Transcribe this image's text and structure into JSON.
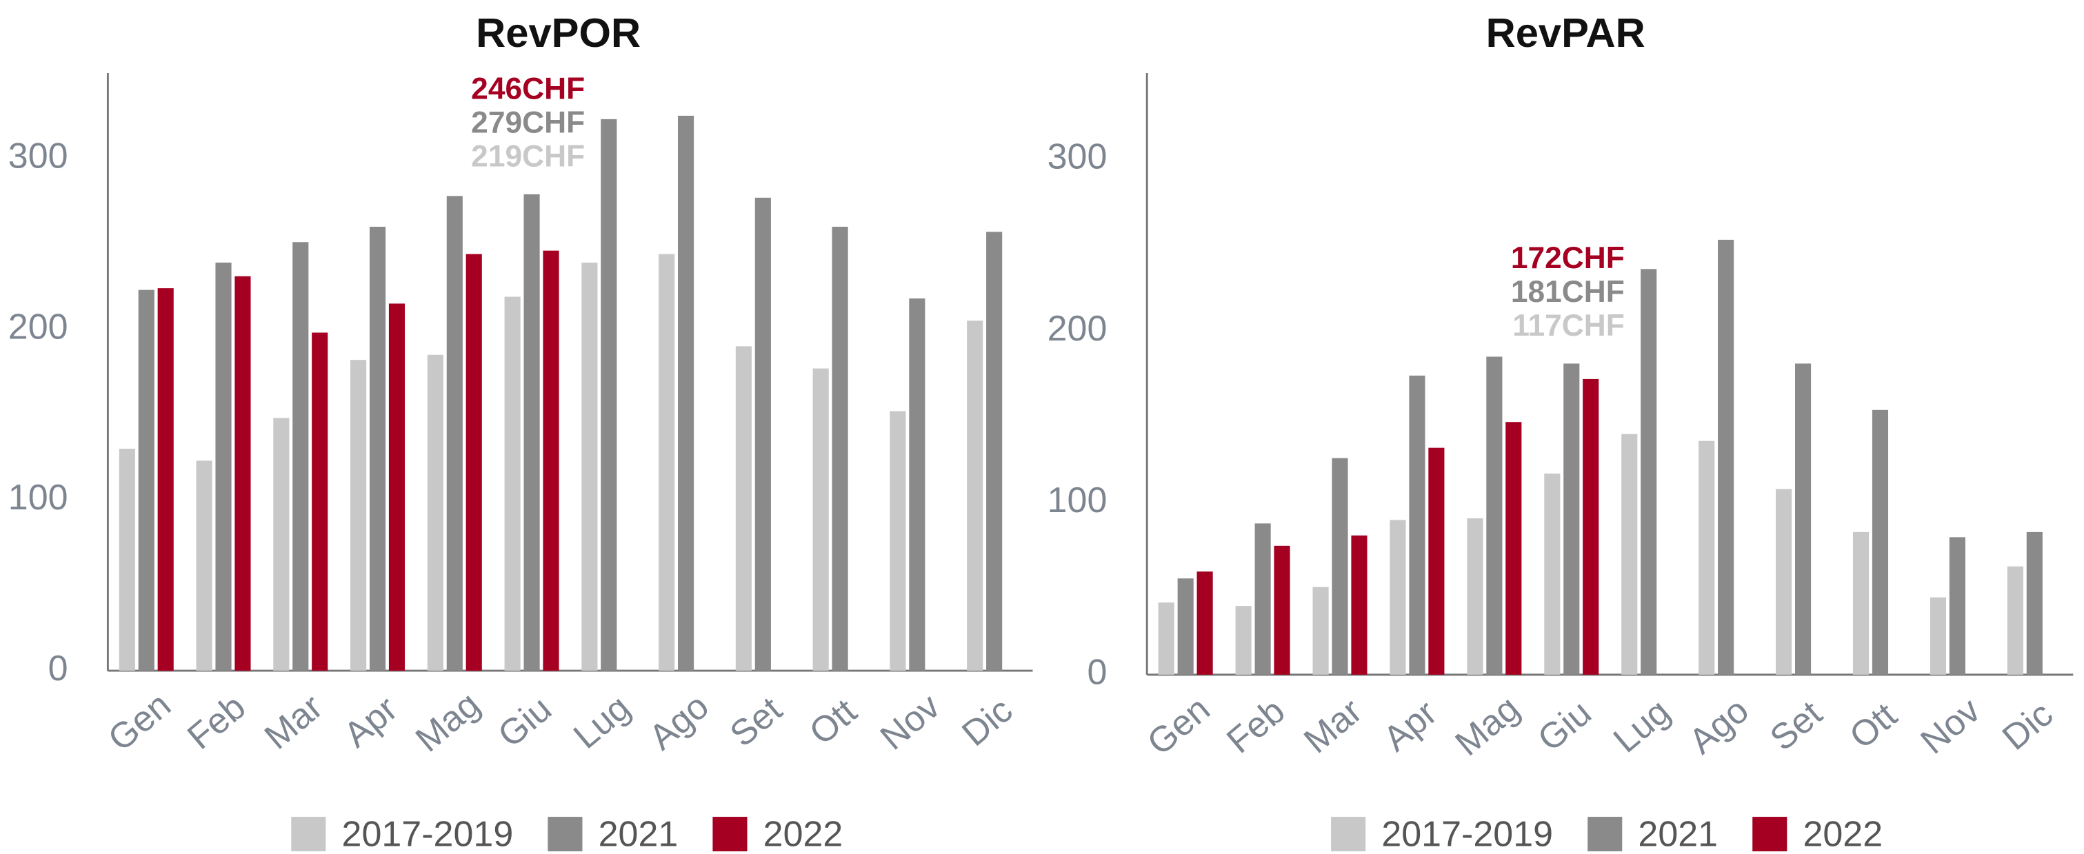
{
  "chart_data": [
    {
      "type": "bar",
      "title": "RevPOR",
      "categories": [
        "Gen",
        "Feb",
        "Mar",
        "Apr",
        "Mag",
        "Giu",
        "Lug",
        "Ago",
        "Set",
        "Ott",
        "Nov",
        "Dic"
      ],
      "series": [
        {
          "name": "2017-2019",
          "color": "#c8c8c8",
          "values": [
            130,
            123,
            148,
            182,
            185,
            219,
            239,
            244,
            190,
            177,
            152,
            205
          ],
          "value_labels": [
            null,
            null,
            null,
            null,
            null,
            "219CHF",
            null,
            null,
            null,
            null,
            null,
            null
          ]
        },
        {
          "name": "2021",
          "color": "#8a8a8a",
          "values": [
            223,
            239,
            251,
            260,
            278,
            279,
            323,
            325,
            277,
            260,
            218,
            257
          ],
          "value_labels": [
            null,
            null,
            null,
            null,
            null,
            "279CHF",
            null,
            null,
            null,
            null,
            null,
            null
          ]
        },
        {
          "name": "2022",
          "color": "#a50021",
          "values": [
            224,
            231,
            198,
            215,
            244,
            246,
            null,
            null,
            null,
            null,
            null,
            null
          ],
          "value_labels": [
            null,
            null,
            null,
            null,
            null,
            "246CHF",
            null,
            null,
            null,
            null,
            null,
            null
          ]
        }
      ],
      "ylim": [
        0,
        350
      ],
      "yticks": [
        0,
        100,
        200,
        300
      ],
      "grid": false,
      "legend": "bottom"
    },
    {
      "type": "bar",
      "title": "RevPAR",
      "categories": [
        "Gen",
        "Feb",
        "Mar",
        "Apr",
        "Mag",
        "Giu",
        "Lug",
        "Ago",
        "Set",
        "Ott",
        "Nov",
        "Dic"
      ],
      "series": [
        {
          "name": "2017-2019",
          "color": "#c8c8c8",
          "values": [
            42,
            40,
            51,
            90,
            91,
            117,
            140,
            136,
            108,
            83,
            45,
            63
          ],
          "value_labels": [
            null,
            null,
            null,
            null,
            null,
            "117CHF",
            null,
            null,
            null,
            null,
            null,
            null
          ]
        },
        {
          "name": "2021",
          "color": "#8a8a8a",
          "values": [
            56,
            88,
            126,
            174,
            185,
            181,
            236,
            253,
            181,
            154,
            80,
            83
          ],
          "value_labels": [
            null,
            null,
            null,
            null,
            null,
            "181CHF",
            null,
            null,
            null,
            null,
            null,
            null
          ]
        },
        {
          "name": "2022",
          "color": "#a50021",
          "values": [
            60,
            75,
            81,
            132,
            147,
            172,
            null,
            null,
            null,
            null,
            null,
            null
          ],
          "value_labels": [
            null,
            null,
            null,
            null,
            null,
            "172CHF",
            null,
            null,
            null,
            null,
            null,
            null
          ]
        }
      ],
      "ylim": [
        0,
        350
      ],
      "yticks": [
        0,
        100,
        200,
        300
      ],
      "grid": false,
      "legend": "bottom"
    }
  ]
}
